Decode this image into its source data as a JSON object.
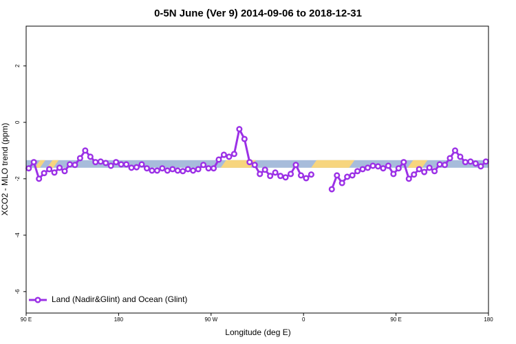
{
  "chart_data": {
    "type": "line",
    "title": "0-5N June (Ver 9)   2014-09-06 to 2018-12-31",
    "xlabel": "Longitude (deg E)",
    "ylabel": "XCO2 - MLO trend (ppm)",
    "xlim": [
      90,
      540
    ],
    "ylim": [
      -6.76,
      3.41
    ],
    "xticks": [
      {
        "value": 90,
        "label": "90 E"
      },
      180,
      {
        "value": 270,
        "label": "90 W"
      },
      {
        "value": 360,
        "label": "0"
      },
      {
        "value": 450,
        "label": "90 E"
      },
      {
        "value": 540,
        "label": "180"
      }
    ],
    "yticks": [
      -6,
      -4,
      -2,
      0,
      2
    ],
    "legend": "bottom left",
    "band_range": [
      -1.61,
      -1.34
    ],
    "band_color": "#a7bcdb",
    "land_color": "#f7d57e",
    "land_segments": [
      [
        101,
        106
      ],
      [
        113,
        119
      ],
      [
        282,
        311
      ],
      [
        370,
        407
      ],
      [
        464,
        478
      ]
    ],
    "x": [
      92.5,
      97.5,
      102.5,
      107.5,
      112.5,
      117.5,
      122.5,
      127.5,
      132.5,
      137.5,
      142.5,
      147.5,
      152.5,
      157.5,
      162.5,
      167.5,
      172.5,
      177.5,
      182.5,
      187.5,
      192.5,
      197.5,
      202.5,
      207.5,
      212.5,
      217.5,
      222.5,
      227.5,
      232.5,
      237.5,
      242.5,
      247.5,
      252.5,
      257.5,
      262.5,
      267.5,
      272.5,
      277.5,
      282.5,
      287.5,
      292.5,
      297.5,
      302.5,
      307.5,
      312.5,
      317.5,
      322.5,
      327.5,
      332.5,
      337.5,
      342.5,
      347.5,
      352.5,
      357.5,
      362.5,
      367.5,
      372.5,
      377.5,
      382.5,
      387.5,
      392.5,
      397.5,
      402.5,
      407.5,
      412.5,
      417.5,
      422.5,
      427.5,
      432.5,
      437.5,
      442.5,
      447.5,
      452.5,
      457.5,
      462.5,
      467.5,
      472.5,
      477.5,
      482.5,
      487.5,
      492.5,
      497.5,
      502.5,
      507.5,
      512.5,
      517.5,
      522.5,
      527.5,
      532.5,
      537.5
    ],
    "series": [
      {
        "name": "Land (Nadir&Glint) and Ocean (Glint)",
        "color": "#9b30e6",
        "values": [
          -1.63,
          -1.41,
          -2.0,
          -1.8,
          -1.66,
          -1.78,
          -1.61,
          -1.73,
          -1.49,
          -1.51,
          -1.27,
          -1.0,
          -1.22,
          -1.41,
          -1.39,
          -1.44,
          -1.54,
          -1.41,
          -1.49,
          -1.49,
          -1.61,
          -1.59,
          -1.49,
          -1.63,
          -1.71,
          -1.71,
          -1.63,
          -1.71,
          -1.66,
          -1.71,
          -1.73,
          -1.66,
          -1.71,
          -1.66,
          -1.51,
          -1.63,
          -1.63,
          -1.32,
          -1.15,
          -1.22,
          -1.12,
          -0.24,
          -0.59,
          -1.41,
          -1.51,
          -1.83,
          -1.68,
          -1.9,
          -1.78,
          -1.9,
          -1.95,
          -1.83,
          -1.51,
          -1.88,
          -1.98,
          -1.85,
          null,
          null,
          null,
          -2.37,
          -1.88,
          -2.15,
          -1.93,
          -1.88,
          -1.73,
          -1.66,
          -1.61,
          -1.54,
          -1.56,
          -1.63,
          -1.54,
          -1.83,
          -1.63,
          -1.41,
          -2.0,
          -1.85,
          -1.66,
          -1.76,
          -1.61,
          -1.73,
          -1.49,
          -1.51,
          -1.27,
          -1.0,
          -1.22,
          -1.41,
          -1.39,
          -1.46,
          -1.56,
          -1.39
        ]
      }
    ]
  }
}
